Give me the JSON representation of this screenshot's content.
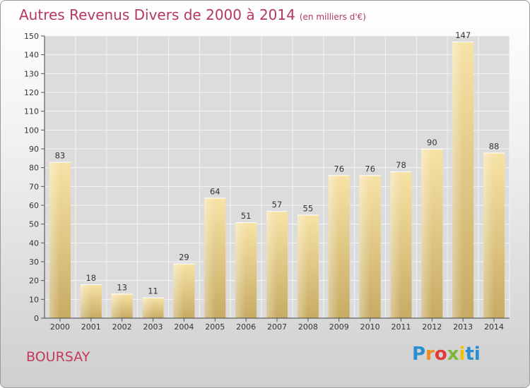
{
  "chart_data": {
    "type": "bar",
    "title": "Autres Revenus Divers de 2000 à 2014",
    "subtitle": "(en milliers d'€)",
    "categories": [
      "2000",
      "2001",
      "2002",
      "2003",
      "2004",
      "2005",
      "2006",
      "2007",
      "2008",
      "2009",
      "2010",
      "2011",
      "2012",
      "2013",
      "2014"
    ],
    "values": [
      83,
      18,
      13,
      11,
      29,
      64,
      51,
      57,
      55,
      76,
      76,
      78,
      90,
      147,
      88
    ],
    "ylim": [
      0,
      150
    ],
    "yticks": [
      0,
      10,
      20,
      30,
      40,
      50,
      60,
      70,
      80,
      90,
      100,
      110,
      120,
      130,
      140,
      150
    ],
    "grid": true,
    "bar_color": "#e8cc82"
  },
  "commune": "BOURSAY",
  "logo": {
    "letters": [
      "P",
      "r",
      "o",
      "x",
      "i",
      "ti"
    ]
  }
}
